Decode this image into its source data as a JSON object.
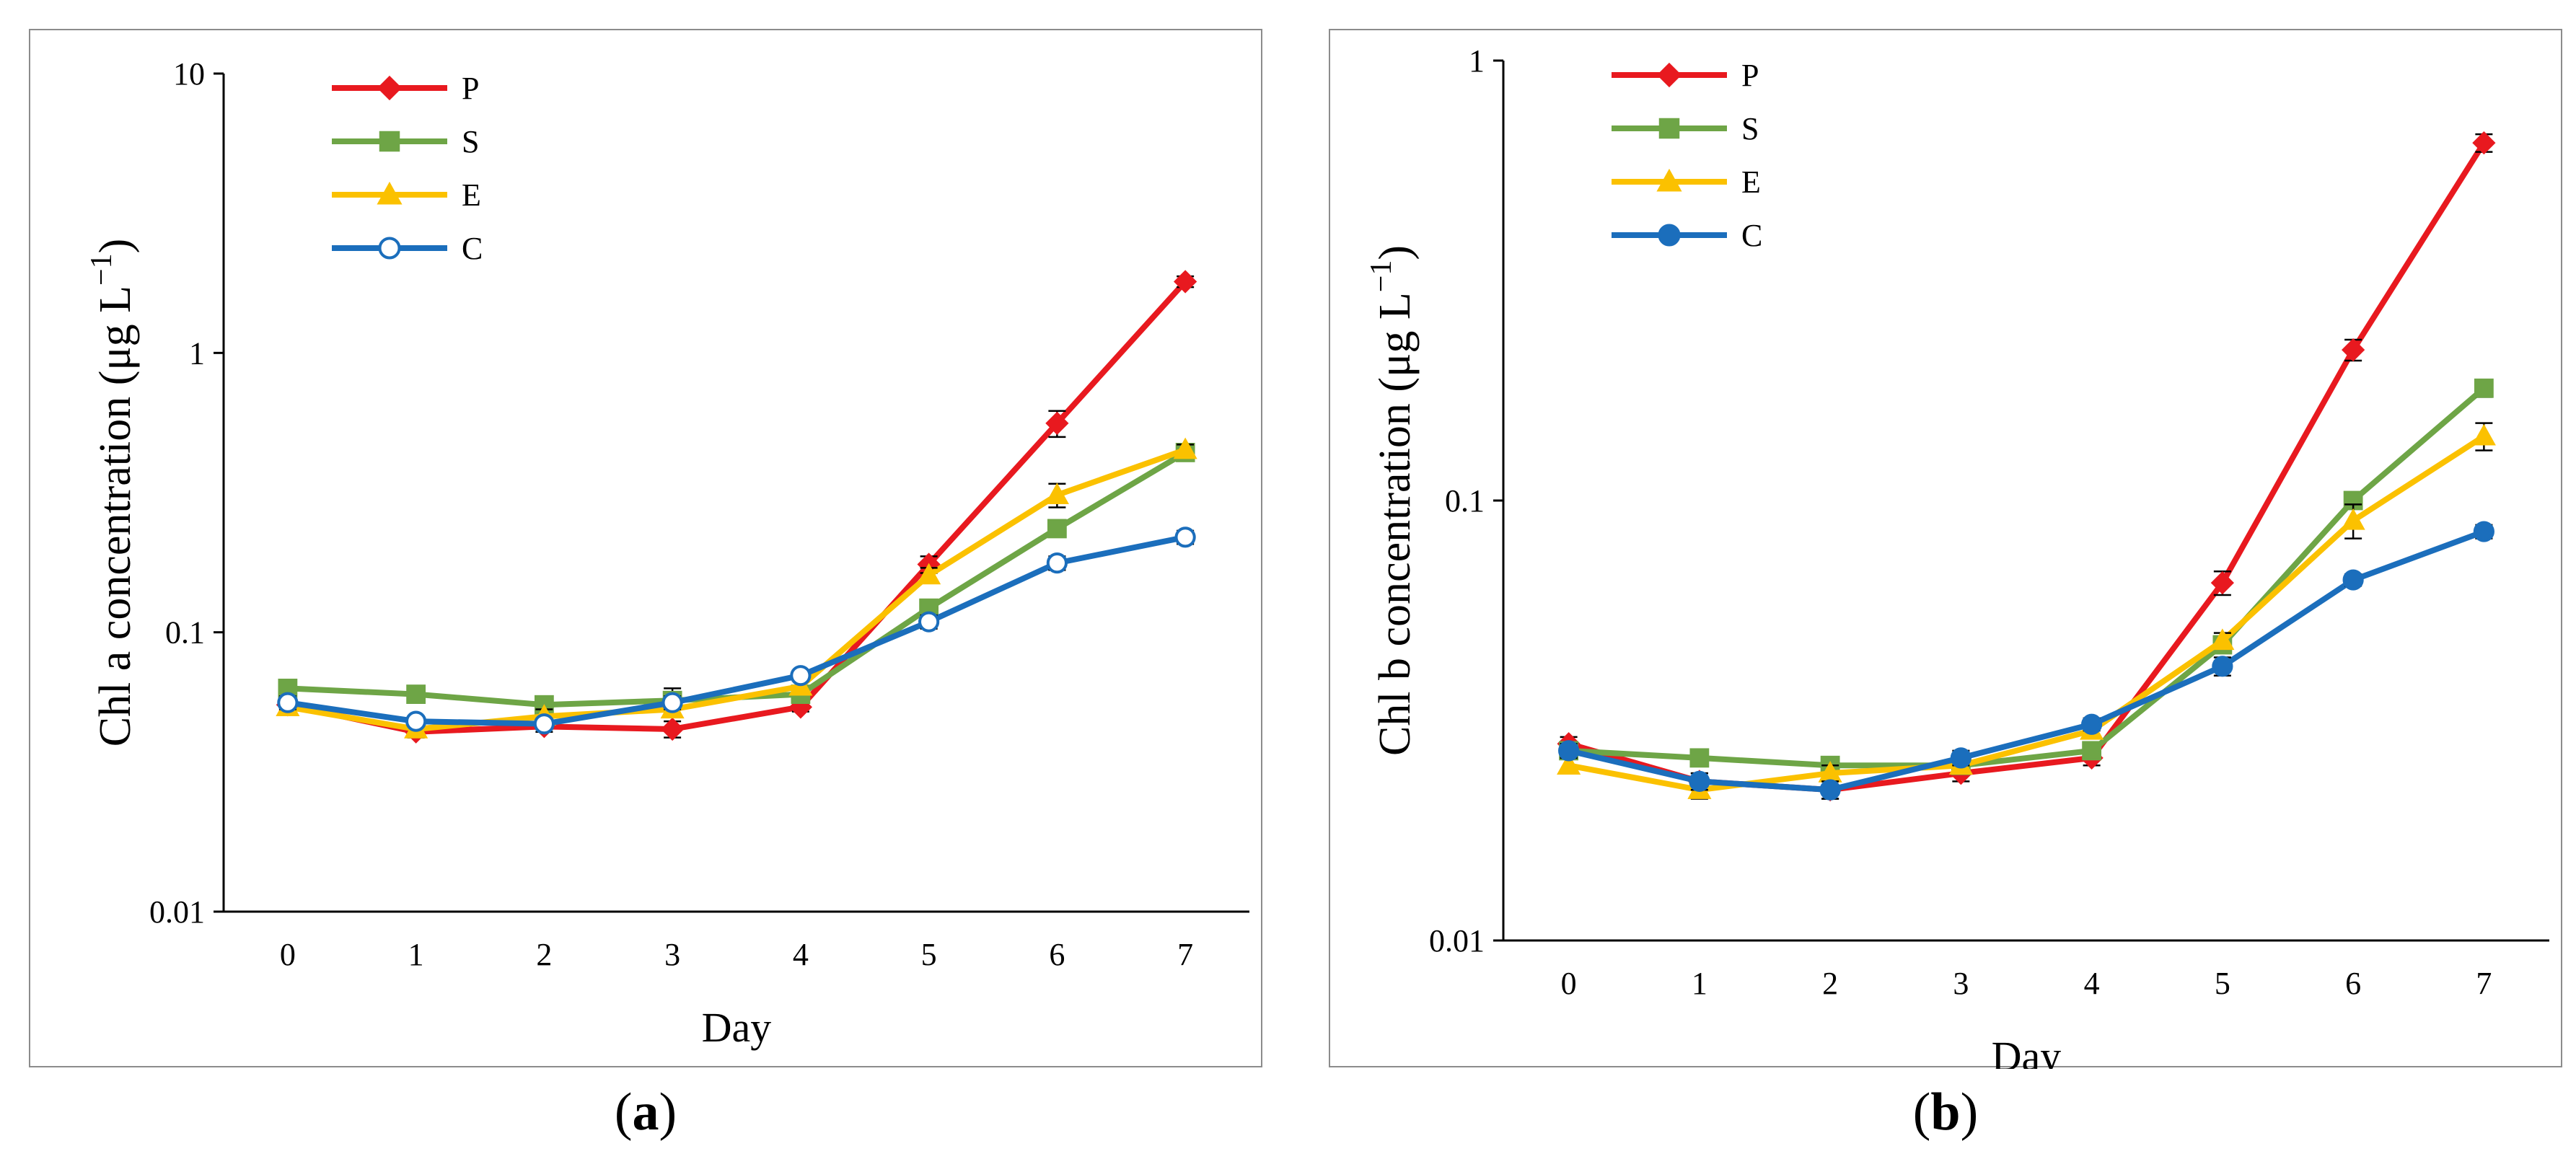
{
  "chart_data": [
    {
      "type": "line",
      "panel": "a",
      "caption_letter": "a",
      "yscale": "log",
      "ylim": [
        0.01,
        10
      ],
      "ytick_labels": [
        "0.01",
        "0.1",
        "1",
        "10"
      ],
      "ytick_values": [
        0.01,
        0.1,
        1,
        10
      ],
      "xlim": [
        -0.5,
        7.5
      ],
      "categories": [
        "0",
        "1",
        "2",
        "3",
        "4",
        "5",
        "6",
        "7"
      ],
      "xlabel": "Day",
      "ylabel": "Chl a concentration (μg L",
      "ylabel_sup": "−1",
      "ylabel_tail": ")",
      "legend_position": "top-left",
      "series": [
        {
          "name": "P",
          "color": "#e8191f",
          "marker": "diamond",
          "filled": true,
          "values": [
            0.055,
            0.044,
            0.046,
            0.045,
            0.054,
            0.175,
            0.56,
            1.8
          ],
          "err": [
            0.003,
            0.002,
            0.002,
            0.003,
            0.002,
            0.012,
            0.06,
            0.08
          ]
        },
        {
          "name": "S",
          "color": "#6ea546",
          "marker": "square",
          "filled": true,
          "values": [
            0.063,
            0.06,
            0.055,
            0.057,
            0.06,
            0.122,
            0.235,
            0.44
          ],
          "err": [
            0.003,
            0.004,
            0.003,
            0.006,
            0.003,
            0.007,
            0.01,
            0.02
          ]
        },
        {
          "name": "E",
          "color": "#fbc100",
          "marker": "triangle",
          "filled": true,
          "values": [
            0.054,
            0.045,
            0.05,
            0.053,
            0.064,
            0.16,
            0.31,
            0.45
          ],
          "err": [
            0.003,
            0.002,
            0.003,
            0.003,
            0.003,
            0.01,
            0.03,
            0.02
          ]
        },
        {
          "name": "C",
          "color": "#1b6ebc",
          "marker": "circle",
          "filled": false,
          "values": [
            0.056,
            0.048,
            0.047,
            0.056,
            0.07,
            0.109,
            0.177,
            0.219
          ],
          "err": [
            0.003,
            0.002,
            0.002,
            0.003,
            0.003,
            0.006,
            0.01,
            0.012
          ]
        }
      ]
    },
    {
      "type": "line",
      "panel": "b",
      "caption_letter": "b",
      "yscale": "log",
      "ylim": [
        0.01,
        1
      ],
      "ytick_labels": [
        "0.01",
        "0.1",
        "1"
      ],
      "ytick_values": [
        0.01,
        0.1,
        1
      ],
      "xlim": [
        -0.5,
        7.5
      ],
      "categories": [
        "0",
        "1",
        "2",
        "3",
        "4",
        "5",
        "6",
        "7"
      ],
      "xlabel": "Day",
      "ylabel": "Chl b concentration (μg L",
      "ylabel_sup": "−1",
      "ylabel_tail": ")",
      "legend_position": "top-left",
      "series": [
        {
          "name": "P",
          "color": "#e8191f",
          "marker": "diamond",
          "filled": true,
          "values": [
            0.028,
            0.023,
            0.022,
            0.024,
            0.026,
            0.065,
            0.22,
            0.65
          ],
          "err": [
            0.001,
            0.001,
            0.001,
            0.001,
            0.001,
            0.004,
            0.012,
            0.03
          ]
        },
        {
          "name": "S",
          "color": "#6ea546",
          "marker": "square",
          "filled": true,
          "values": [
            0.027,
            0.026,
            0.025,
            0.025,
            0.027,
            0.047,
            0.1,
            0.18
          ],
          "err": [
            0.001,
            0.001,
            0.001,
            0.001,
            0.001,
            0.002,
            0.004,
            0.008
          ]
        },
        {
          "name": "E",
          "color": "#fbc100",
          "marker": "triangle",
          "filled": true,
          "values": [
            0.025,
            0.022,
            0.024,
            0.025,
            0.03,
            0.048,
            0.09,
            0.14
          ],
          "err": [
            0.001,
            0.001,
            0.001,
            0.001,
            0.001,
            0.002,
            0.008,
            0.01
          ]
        },
        {
          "name": "C",
          "color": "#1b6ebc",
          "marker": "circle",
          "filled": true,
          "values": [
            0.027,
            0.023,
            0.022,
            0.026,
            0.031,
            0.042,
            0.066,
            0.085
          ],
          "err": [
            0.001,
            0.001,
            0.001,
            0.001,
            0.001,
            0.002,
            0.002,
            0.003
          ]
        }
      ]
    }
  ]
}
